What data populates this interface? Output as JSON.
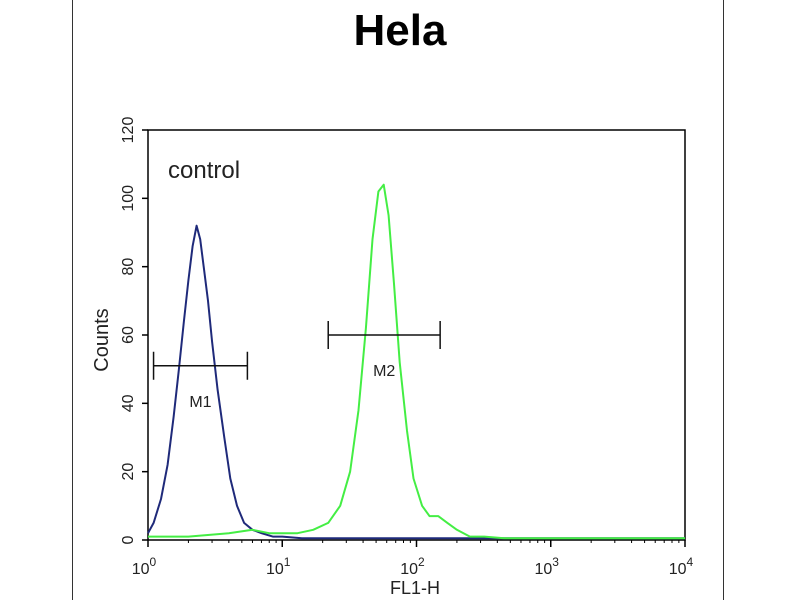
{
  "chart_data": {
    "type": "line",
    "title": "Hela",
    "xlabel": "FL1-H",
    "ylabel": "Counts",
    "xscale": "log",
    "xlim": [
      1,
      10000
    ],
    "ylim": [
      0,
      120
    ],
    "yticks": [
      0,
      20,
      40,
      60,
      80,
      100,
      120
    ],
    "xticks": [
      {
        "base": "10",
        "exp": "0"
      },
      {
        "base": "10",
        "exp": "1"
      },
      {
        "base": "10",
        "exp": "2"
      },
      {
        "base": "10",
        "exp": "3"
      },
      {
        "base": "10",
        "exp": "4"
      }
    ],
    "annotation": "control",
    "series": [
      {
        "color": "#1f2a7a",
        "x": [
          1.0,
          1.1,
          1.25,
          1.4,
          1.55,
          1.7,
          1.85,
          2.0,
          2.15,
          2.3,
          2.45,
          2.6,
          2.8,
          3.0,
          3.3,
          3.7,
          4.1,
          4.6,
          5.2,
          6.0,
          7.0,
          8.5,
          10,
          14,
          20,
          30,
          50,
          80,
          130,
          200,
          400,
          800,
          1500,
          3000,
          6000,
          10000
        ],
        "y": [
          2,
          5,
          12,
          22,
          36,
          50,
          64,
          76,
          86,
          92,
          88,
          80,
          70,
          58,
          44,
          30,
          18,
          10,
          5,
          3,
          2,
          1,
          1,
          0.5,
          0.5,
          0.5,
          0.5,
          0.5,
          0.5,
          0.5,
          0.5,
          0.5,
          0.5,
          0.5,
          0.5,
          0.5
        ]
      },
      {
        "color": "#44ee44",
        "x": [
          1.0,
          2,
          4,
          6,
          8,
          10,
          13,
          17,
          22,
          27,
          32,
          37,
          42,
          47,
          52,
          57,
          62,
          68,
          75,
          85,
          95,
          110,
          125,
          145,
          170,
          200,
          250,
          320,
          450,
          700,
          1000,
          2000,
          4000,
          10000
        ],
        "y": [
          1,
          1,
          2,
          3,
          2,
          2,
          2,
          3,
          5,
          10,
          20,
          38,
          62,
          88,
          102,
          104,
          95,
          75,
          52,
          32,
          18,
          10,
          7,
          7,
          5,
          3,
          1,
          1,
          0.5,
          0.5,
          0.5,
          0.5,
          0.5,
          0.5
        ]
      }
    ],
    "markers": [
      {
        "label": "M1",
        "x_start": 1.1,
        "x_end": 5.5,
        "y": 51
      },
      {
        "label": "M2",
        "x_start": 22,
        "x_end": 150,
        "y": 60
      }
    ]
  }
}
